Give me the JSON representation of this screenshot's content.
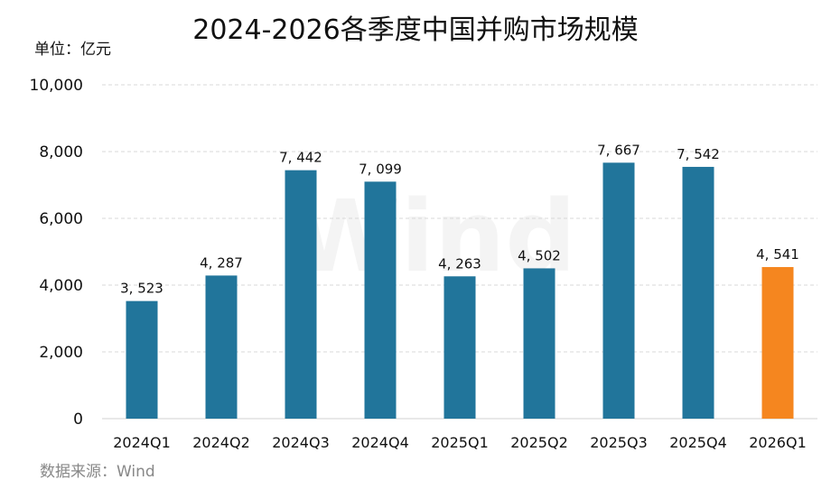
{
  "chart_data": {
    "type": "bar",
    "title": "2024-2026各季度中国并购市场规模",
    "unit_label": "单位：亿元",
    "source": "数据来源：Wind",
    "watermark": "Wind",
    "categories": [
      "2024Q1",
      "2024Q2",
      "2024Q3",
      "2024Q4",
      "2025Q1",
      "2025Q2",
      "2025Q3",
      "2025Q4",
      "2026Q1"
    ],
    "values": [
      3523,
      4287,
      7442,
      7099,
      4263,
      4502,
      7667,
      7542,
      4541
    ],
    "data_labels": [
      "3, 523",
      "4, 287",
      "7, 442",
      "7, 099",
      "4, 263",
      "4, 502",
      "7, 667",
      "7, 542",
      "4, 541"
    ],
    "ylim": [
      0,
      10000
    ],
    "yticks": [
      0,
      2000,
      4000,
      6000,
      8000,
      10000
    ],
    "ytick_labels": [
      "0",
      "2,000",
      "4,000",
      "6,000",
      "8,000",
      "10,000"
    ],
    "grid": true,
    "colors": {
      "default": "#21759b",
      "highlight": "#f5861f"
    },
    "highlight_index": 8
  }
}
